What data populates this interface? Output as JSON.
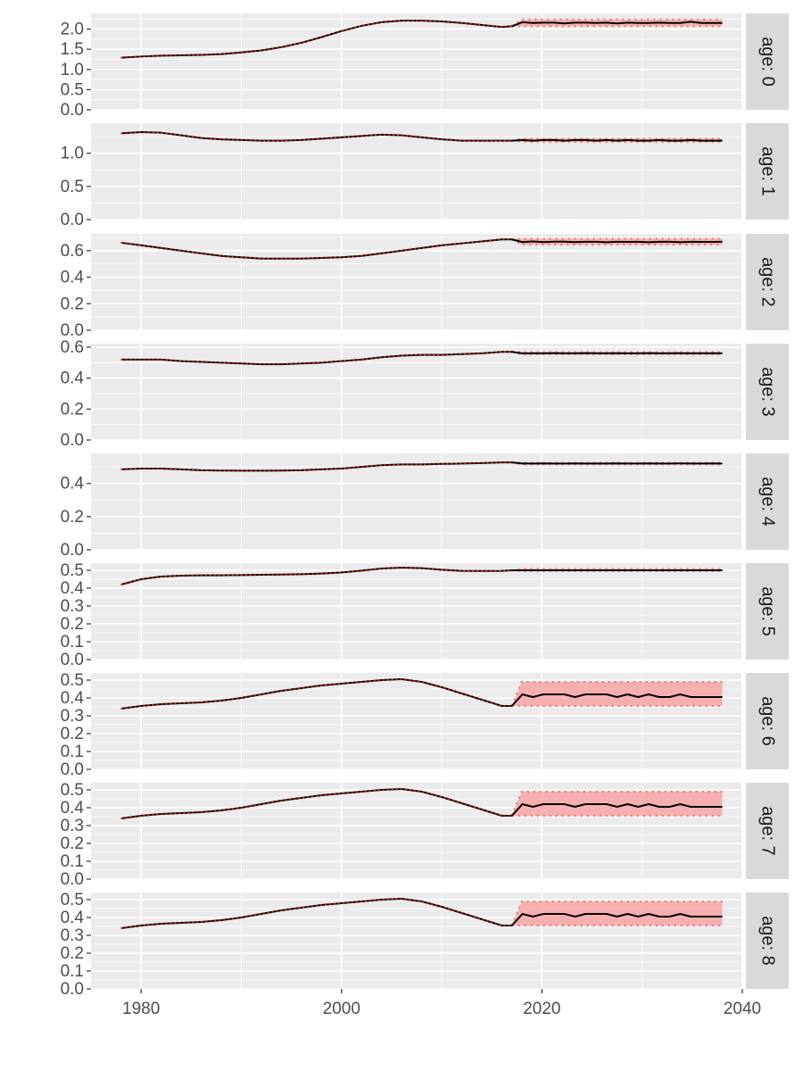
{
  "chart_data": {
    "type": "line",
    "facet_by": "age",
    "x_ticks": [
      1980,
      2000,
      2020,
      2040
    ],
    "xlim": [
      1975,
      2040
    ],
    "grid": true,
    "forecast_start": 2017,
    "panels": [
      {
        "strip": "age: 0",
        "ylim": [
          0,
          2.3
        ],
        "y_ticks": [
          0.0,
          0.5,
          1.0,
          1.5,
          2.0
        ],
        "y_tick_labels": [
          "0.0",
          "0.5",
          "1.0",
          "1.5",
          "2.0"
        ],
        "x": [
          1978,
          1980,
          1982,
          1984,
          1986,
          1988,
          1990,
          1992,
          1994,
          1996,
          1998,
          2000,
          2002,
          2004,
          2006,
          2008,
          2010,
          2012,
          2014,
          2016,
          2017
        ],
        "y": [
          1.29,
          1.32,
          1.34,
          1.35,
          1.36,
          1.38,
          1.42,
          1.47,
          1.55,
          1.66,
          1.8,
          1.95,
          2.08,
          2.17,
          2.21,
          2.21,
          2.19,
          2.15,
          2.1,
          2.05,
          2.07
        ],
        "forecast_mean": [
          2.07,
          2.17,
          2.15,
          2.16,
          2.16,
          2.14,
          2.16,
          2.16,
          2.15,
          2.16,
          2.14,
          2.16,
          2.15,
          2.15,
          2.16,
          2.15,
          2.15,
          2.18,
          2.15,
          2.15,
          2.15
        ],
        "forecast_lower": 2.07,
        "forecast_upper": 2.24
      },
      {
        "strip": "age: 1",
        "ylim": [
          0,
          1.4
        ],
        "y_ticks": [
          0.0,
          0.5,
          1.0
        ],
        "y_tick_labels": [
          "0.0",
          "0.5",
          "1.0"
        ],
        "x": [
          1978,
          1980,
          1982,
          1984,
          1986,
          1988,
          1990,
          1992,
          1994,
          1996,
          1998,
          2000,
          2002,
          2004,
          2006,
          2008,
          2010,
          2012,
          2014,
          2016,
          2017
        ],
        "y": [
          1.3,
          1.32,
          1.31,
          1.27,
          1.23,
          1.21,
          1.2,
          1.19,
          1.19,
          1.2,
          1.22,
          1.24,
          1.26,
          1.28,
          1.27,
          1.24,
          1.21,
          1.19,
          1.19,
          1.19,
          1.19
        ],
        "forecast_mean": [
          1.19,
          1.2,
          1.19,
          1.2,
          1.2,
          1.19,
          1.2,
          1.2,
          1.19,
          1.2,
          1.19,
          1.2,
          1.19,
          1.19,
          1.2,
          1.19,
          1.19,
          1.2,
          1.19,
          1.19,
          1.19
        ],
        "forecast_lower": 1.17,
        "forecast_upper": 1.22
      },
      {
        "strip": "age: 2",
        "ylim": [
          0,
          0.7
        ],
        "y_ticks": [
          0.0,
          0.2,
          0.4,
          0.6
        ],
        "y_tick_labels": [
          "0.0",
          "0.2",
          "0.4",
          "0.6"
        ],
        "x": [
          1978,
          1980,
          1982,
          1984,
          1986,
          1988,
          1990,
          1992,
          1994,
          1996,
          1998,
          2000,
          2002,
          2004,
          2006,
          2008,
          2010,
          2012,
          2014,
          2016,
          2017
        ],
        "y": [
          0.66,
          0.64,
          0.62,
          0.6,
          0.58,
          0.56,
          0.55,
          0.54,
          0.54,
          0.54,
          0.545,
          0.55,
          0.56,
          0.58,
          0.6,
          0.62,
          0.64,
          0.655,
          0.67,
          0.685,
          0.685
        ],
        "forecast_mean": [
          0.685,
          0.665,
          0.67,
          0.665,
          0.668,
          0.668,
          0.665,
          0.667,
          0.667,
          0.664,
          0.667,
          0.666,
          0.667,
          0.664,
          0.667,
          0.667,
          0.664,
          0.667,
          0.666,
          0.666,
          0.667
        ],
        "forecast_lower": 0.645,
        "forecast_upper": 0.69
      },
      {
        "strip": "age: 3",
        "ylim": [
          0,
          0.6
        ],
        "y_ticks": [
          0.0,
          0.2,
          0.4,
          0.6
        ],
        "y_tick_labels": [
          "0.0",
          "0.2",
          "0.4",
          "0.6"
        ],
        "x": [
          1978,
          1980,
          1982,
          1984,
          1986,
          1988,
          1990,
          1992,
          1994,
          1996,
          1998,
          2000,
          2002,
          2004,
          2006,
          2008,
          2010,
          2012,
          2014,
          2016,
          2017
        ],
        "y": [
          0.52,
          0.52,
          0.52,
          0.51,
          0.505,
          0.5,
          0.495,
          0.49,
          0.49,
          0.495,
          0.5,
          0.51,
          0.52,
          0.535,
          0.545,
          0.55,
          0.55,
          0.555,
          0.56,
          0.57,
          0.57
        ],
        "forecast_mean": [
          0.57,
          0.56,
          0.56,
          0.56,
          0.562,
          0.56,
          0.56,
          0.562,
          0.56,
          0.56,
          0.561,
          0.56,
          0.56,
          0.562,
          0.56,
          0.56,
          0.561,
          0.56,
          0.56,
          0.561,
          0.56
        ],
        "forecast_lower": 0.553,
        "forecast_upper": 0.568
      },
      {
        "strip": "age: 4",
        "ylim": [
          0,
          0.56
        ],
        "y_ticks": [
          0.0,
          0.2,
          0.4
        ],
        "y_tick_labels": [
          "0.0",
          "0.2",
          "0.4"
        ],
        "x": [
          1978,
          1980,
          1982,
          1984,
          1986,
          1988,
          1990,
          1992,
          1994,
          1996,
          1998,
          2000,
          2002,
          2004,
          2006,
          2008,
          2010,
          2012,
          2014,
          2016,
          2017
        ],
        "y": [
          0.485,
          0.49,
          0.49,
          0.485,
          0.48,
          0.478,
          0.477,
          0.477,
          0.478,
          0.48,
          0.485,
          0.49,
          0.5,
          0.51,
          0.515,
          0.515,
          0.518,
          0.52,
          0.523,
          0.527,
          0.527
        ],
        "forecast_mean": [
          0.527,
          0.52,
          0.52,
          0.521,
          0.52,
          0.52,
          0.521,
          0.52,
          0.52,
          0.52,
          0.521,
          0.52,
          0.52,
          0.521,
          0.52,
          0.52,
          0.521,
          0.52,
          0.52,
          0.521,
          0.52
        ],
        "forecast_lower": 0.515,
        "forecast_upper": 0.526
      },
      {
        "strip": "age: 5",
        "ylim": [
          0,
          0.52
        ],
        "y_ticks": [
          0.0,
          0.1,
          0.2,
          0.3,
          0.4,
          0.5
        ],
        "y_tick_labels": [
          "0.0",
          "0.1",
          "0.2",
          "0.3",
          "0.4",
          "0.5"
        ],
        "x": [
          1978,
          1980,
          1982,
          1984,
          1986,
          1988,
          1990,
          1992,
          1994,
          1996,
          1998,
          2000,
          2002,
          2004,
          2006,
          2008,
          2010,
          2012,
          2014,
          2016,
          2017
        ],
        "y": [
          0.42,
          0.45,
          0.465,
          0.47,
          0.472,
          0.472,
          0.473,
          0.475,
          0.476,
          0.478,
          0.482,
          0.488,
          0.498,
          0.51,
          0.515,
          0.512,
          0.503,
          0.497,
          0.496,
          0.497,
          0.5
        ],
        "forecast_mean": [
          0.5,
          0.5,
          0.5,
          0.5,
          0.5,
          0.5,
          0.5,
          0.5,
          0.5,
          0.5,
          0.5,
          0.5,
          0.5,
          0.5,
          0.5,
          0.5,
          0.5,
          0.5,
          0.5,
          0.5,
          0.5
        ],
        "forecast_lower": 0.495,
        "forecast_upper": 0.508
      },
      {
        "strip": "age: 6",
        "ylim": [
          0,
          0.52
        ],
        "y_ticks": [
          0.0,
          0.1,
          0.2,
          0.3,
          0.4,
          0.5
        ],
        "y_tick_labels": [
          "0.0",
          "0.1",
          "0.2",
          "0.3",
          "0.4",
          "0.5"
        ],
        "x": [
          1978,
          1980,
          1982,
          1984,
          1986,
          1988,
          1990,
          1992,
          1994,
          1996,
          1998,
          2000,
          2002,
          2004,
          2006,
          2008,
          2010,
          2012,
          2014,
          2016,
          2017
        ],
        "y": [
          0.34,
          0.355,
          0.365,
          0.37,
          0.375,
          0.385,
          0.4,
          0.42,
          0.44,
          0.455,
          0.47,
          0.48,
          0.49,
          0.5,
          0.505,
          0.49,
          0.46,
          0.425,
          0.39,
          0.355,
          0.355
        ],
        "forecast_mean": [
          0.355,
          0.42,
          0.405,
          0.42,
          0.42,
          0.42,
          0.405,
          0.42,
          0.42,
          0.42,
          0.405,
          0.42,
          0.405,
          0.42,
          0.405,
          0.405,
          0.42,
          0.405,
          0.405,
          0.405,
          0.405
        ],
        "forecast_lower": 0.355,
        "forecast_upper": 0.49
      },
      {
        "strip": "age: 7",
        "ylim": [
          0,
          0.52
        ],
        "y_ticks": [
          0.0,
          0.1,
          0.2,
          0.3,
          0.4,
          0.5
        ],
        "y_tick_labels": [
          "0.0",
          "0.1",
          "0.2",
          "0.3",
          "0.4",
          "0.5"
        ],
        "x": [
          1978,
          1980,
          1982,
          1984,
          1986,
          1988,
          1990,
          1992,
          1994,
          1996,
          1998,
          2000,
          2002,
          2004,
          2006,
          2008,
          2010,
          2012,
          2014,
          2016,
          2017
        ],
        "y": [
          0.34,
          0.355,
          0.365,
          0.37,
          0.375,
          0.385,
          0.4,
          0.42,
          0.44,
          0.455,
          0.47,
          0.48,
          0.49,
          0.5,
          0.505,
          0.49,
          0.46,
          0.425,
          0.39,
          0.355,
          0.355
        ],
        "forecast_mean": [
          0.355,
          0.42,
          0.405,
          0.42,
          0.42,
          0.42,
          0.405,
          0.42,
          0.42,
          0.42,
          0.405,
          0.42,
          0.405,
          0.42,
          0.405,
          0.405,
          0.42,
          0.405,
          0.405,
          0.405,
          0.405
        ],
        "forecast_lower": 0.355,
        "forecast_upper": 0.49
      },
      {
        "strip": "age: 8",
        "ylim": [
          0,
          0.52
        ],
        "y_ticks": [
          0.0,
          0.1,
          0.2,
          0.3,
          0.4,
          0.5
        ],
        "y_tick_labels": [
          "0.0",
          "0.1",
          "0.2",
          "0.3",
          "0.4",
          "0.5"
        ],
        "x": [
          1978,
          1980,
          1982,
          1984,
          1986,
          1988,
          1990,
          1992,
          1994,
          1996,
          1998,
          2000,
          2002,
          2004,
          2006,
          2008,
          2010,
          2012,
          2014,
          2016,
          2017
        ],
        "y": [
          0.34,
          0.355,
          0.365,
          0.37,
          0.375,
          0.385,
          0.4,
          0.42,
          0.44,
          0.455,
          0.47,
          0.48,
          0.49,
          0.5,
          0.505,
          0.49,
          0.46,
          0.425,
          0.39,
          0.355,
          0.355
        ],
        "forecast_mean": [
          0.355,
          0.42,
          0.405,
          0.42,
          0.42,
          0.42,
          0.405,
          0.42,
          0.42,
          0.42,
          0.405,
          0.42,
          0.405,
          0.42,
          0.405,
          0.405,
          0.42,
          0.405,
          0.405,
          0.405,
          0.405
        ],
        "forecast_lower": 0.355,
        "forecast_upper": 0.49
      }
    ],
    "colors": {
      "panel_bg": "#ebebeb",
      "grid": "#ffffff",
      "strip_bg": "#d9d9d9",
      "line": "#000000",
      "median_dotted": "#e41a1c",
      "band_fill": "#f8a5a5",
      "band_border": "#f07070",
      "tick_text": "#4d4d4d"
    }
  }
}
